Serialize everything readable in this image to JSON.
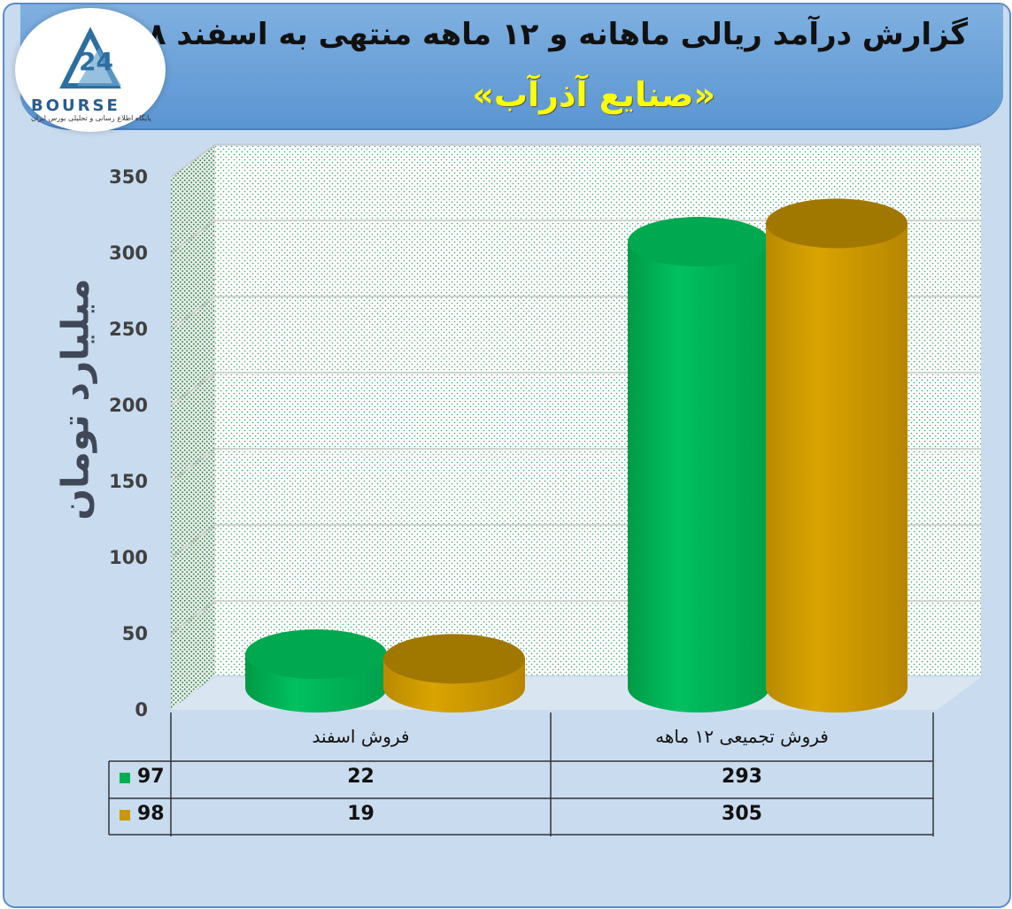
{
  "header": {
    "title": "گزارش درآمد ریالی ماهانه و ۱۲ ماهه منتهی به اسفند ۹۸",
    "subtitle": "«صنایع آذرآب»",
    "logo_text": "BOURSE",
    "logo_subtext": "پایگاه اطلاع رسانی و تحلیلی بورس ایران"
  },
  "chart_data": {
    "type": "bar",
    "ylabel": "میلیارد تومان",
    "ylim": [
      0,
      350
    ],
    "yticks": [
      0,
      50,
      100,
      150,
      200,
      250,
      300,
      350
    ],
    "categories": [
      "فروش اسفند",
      "فروش تجمیعی ۱۲ ماهه"
    ],
    "series": [
      {
        "name": "97",
        "values": [
          22,
          293
        ],
        "color": "#00b050"
      },
      {
        "name": "98",
        "values": [
          19,
          305
        ],
        "color": "#c99700"
      }
    ],
    "grid": true,
    "legend": "data-table"
  }
}
